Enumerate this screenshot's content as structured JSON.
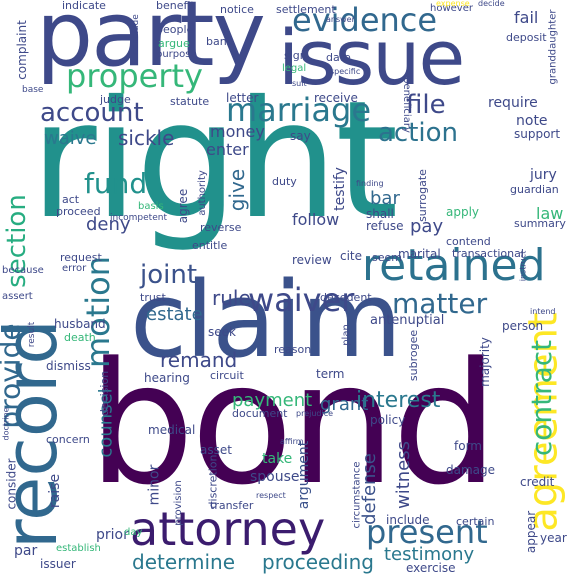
{
  "words": [
    {
      "text": "bond",
      "color": "#440154"
    },
    {
      "text": "right",
      "color": "#21918c"
    },
    {
      "text": "claim",
      "color": "#3b528b"
    },
    {
      "text": "party",
      "color": "#3e4989"
    },
    {
      "text": "issue",
      "color": "#3e4989"
    },
    {
      "text": "record",
      "color": "#31688e"
    },
    {
      "text": "retained",
      "color": "#2c728e"
    },
    {
      "text": "agreement",
      "color": "#fde725"
    },
    {
      "text": "attorney",
      "color": "#3b1c6e"
    },
    {
      "text": "evidence",
      "color": "#31688e"
    },
    {
      "text": "property",
      "color": "#35b779"
    },
    {
      "text": "marriage",
      "color": "#2a788e"
    },
    {
      "text": "account",
      "color": "#3e4989"
    },
    {
      "text": "waiver",
      "color": "#3e4989"
    },
    {
      "text": "motion",
      "color": "#2a788e"
    },
    {
      "text": "matter",
      "color": "#31688e"
    },
    {
      "text": "joint",
      "color": "#3b528b"
    },
    {
      "text": "present",
      "color": "#31688e"
    },
    {
      "text": "contract",
      "color": "#35b779"
    },
    {
      "text": "provide",
      "color": "#31688e"
    },
    {
      "text": "section",
      "color": "#27ad81"
    },
    {
      "text": "action",
      "color": "#2c728e"
    },
    {
      "text": "file",
      "color": "#3e4989"
    },
    {
      "text": "fund",
      "color": "#21918c"
    },
    {
      "text": "interest",
      "color": "#2a788e"
    },
    {
      "text": "determine",
      "color": "#2a788e"
    },
    {
      "text": "proceeding",
      "color": "#2a788e"
    },
    {
      "text": "testimony",
      "color": "#2a788e"
    },
    {
      "text": "witness",
      "color": "#3e4989"
    },
    {
      "text": "counsel",
      "color": "#2a788e"
    },
    {
      "text": "estate",
      "color": "#31688e"
    },
    {
      "text": "rule",
      "color": "#3e4989"
    },
    {
      "text": "remand",
      "color": "#3e4989"
    },
    {
      "text": "payment",
      "color": "#35b779"
    },
    {
      "text": "grant",
      "color": "#31688e"
    },
    {
      "text": "defense",
      "color": "#3b528b"
    },
    {
      "text": "argument",
      "color": "#3b528b"
    },
    {
      "text": "sickle",
      "color": "#3e4989"
    },
    {
      "text": "waive",
      "color": "#2a788e"
    },
    {
      "text": "money",
      "color": "#3e4989"
    },
    {
      "text": "enter",
      "color": "#3e4989"
    },
    {
      "text": "give",
      "color": "#31688e"
    },
    {
      "text": "deny",
      "color": "#3e4989"
    },
    {
      "text": "pay",
      "color": "#3e4989"
    },
    {
      "text": "bar",
      "color": "#31688e"
    },
    {
      "text": "law",
      "color": "#35b779"
    },
    {
      "text": "jury",
      "color": "#3e4989"
    },
    {
      "text": "note",
      "color": "#3e4989"
    },
    {
      "text": "support",
      "color": "#3e4989"
    },
    {
      "text": "require",
      "color": "#3e4989"
    },
    {
      "text": "receive",
      "color": "#3e4989"
    },
    {
      "text": "letter",
      "color": "#3e4989"
    },
    {
      "text": "statute",
      "color": "#3e4989"
    },
    {
      "text": "judge",
      "color": "#3e4989"
    },
    {
      "text": "fail",
      "color": "#3e4989"
    },
    {
      "text": "deposit",
      "color": "#3e4989"
    },
    {
      "text": "granddaughter",
      "color": "#3e4989"
    },
    {
      "text": "complaint",
      "color": "#3e4989"
    },
    {
      "text": "indicate",
      "color": "#3e4989"
    },
    {
      "text": "benefit",
      "color": "#3e4989"
    },
    {
      "text": "notice",
      "color": "#3e4989"
    },
    {
      "text": "settlement",
      "color": "#3e4989"
    },
    {
      "text": "however",
      "color": "#3e4989"
    },
    {
      "text": "decide",
      "color": "#3e4989"
    },
    {
      "text": "people",
      "color": "#3e4989"
    },
    {
      "text": "bank",
      "color": "#3e4989"
    },
    {
      "text": "argue",
      "color": "#35b779"
    },
    {
      "text": "purpose",
      "color": "#3e4989"
    },
    {
      "text": "sign",
      "color": "#3e4989"
    },
    {
      "text": "legal",
      "color": "#35b779"
    },
    {
      "text": "date",
      "color": "#3e4989"
    },
    {
      "text": "specific",
      "color": "#3e4989"
    },
    {
      "text": "beneficiary",
      "color": "#3e4989"
    },
    {
      "text": "consider",
      "color": "#3e4989"
    },
    {
      "text": "raise",
      "color": "#3e4989"
    },
    {
      "text": "prior",
      "color": "#3e4989"
    },
    {
      "text": "par",
      "color": "#3e4989"
    },
    {
      "text": "issuer",
      "color": "#3e4989"
    },
    {
      "text": "minor",
      "color": "#3e4989"
    },
    {
      "text": "take",
      "color": "#35b779"
    },
    {
      "text": "spouse",
      "color": "#3e4989"
    },
    {
      "text": "asset",
      "color": "#3e4989"
    },
    {
      "text": "medical",
      "color": "#3e4989"
    },
    {
      "text": "document",
      "color": "#3e4989"
    },
    {
      "text": "hearing",
      "color": "#3e4989"
    },
    {
      "text": "seek",
      "color": "#3e4989"
    },
    {
      "text": "circuit",
      "color": "#3e4989"
    },
    {
      "text": "reason",
      "color": "#3e4989"
    },
    {
      "text": "term",
      "color": "#3e4989"
    },
    {
      "text": "policy",
      "color": "#3e4989"
    },
    {
      "text": "antenuptial",
      "color": "#3e4989"
    },
    {
      "text": "decedent",
      "color": "#3e4989"
    },
    {
      "text": "person",
      "color": "#3e4989"
    },
    {
      "text": "marital",
      "color": "#3e4989"
    },
    {
      "text": "transactional",
      "color": "#3e4989"
    },
    {
      "text": "review",
      "color": "#3e4989"
    },
    {
      "text": "cite",
      "color": "#3e4989"
    },
    {
      "text": "seem",
      "color": "#3e4989"
    },
    {
      "text": "follow",
      "color": "#3e4989"
    },
    {
      "text": "shall",
      "color": "#3e4989"
    },
    {
      "text": "refuse",
      "color": "#3e4989"
    },
    {
      "text": "apply",
      "color": "#35b779"
    },
    {
      "text": "contend",
      "color": "#3e4989"
    },
    {
      "text": "summary",
      "color": "#3e4989"
    },
    {
      "text": "guardian",
      "color": "#3e4989"
    },
    {
      "text": "duty",
      "color": "#3e4989"
    },
    {
      "text": "testify",
      "color": "#3e4989"
    },
    {
      "text": "agree",
      "color": "#3e4989"
    },
    {
      "text": "proceed",
      "color": "#3e4989"
    },
    {
      "text": "reverse",
      "color": "#3e4989"
    },
    {
      "text": "entitle",
      "color": "#3e4989"
    },
    {
      "text": "request",
      "color": "#3e4989"
    },
    {
      "text": "error",
      "color": "#3e4989"
    },
    {
      "text": "because",
      "color": "#3e4989"
    },
    {
      "text": "assert",
      "color": "#3e4989"
    },
    {
      "text": "husband",
      "color": "#3e4989"
    },
    {
      "text": "death",
      "color": "#35b779"
    },
    {
      "text": "dismiss",
      "color": "#3e4989"
    },
    {
      "text": "decision",
      "color": "#3e4989"
    },
    {
      "text": "concern",
      "color": "#3e4989"
    },
    {
      "text": "damage",
      "color": "#3e4989"
    },
    {
      "text": "form",
      "color": "#3e4989"
    },
    {
      "text": "credit",
      "color": "#3e4989"
    },
    {
      "text": "include",
      "color": "#3e4989"
    },
    {
      "text": "certain",
      "color": "#3e4989"
    },
    {
      "text": "exercise",
      "color": "#3e4989"
    },
    {
      "text": "establish",
      "color": "#35b779"
    },
    {
      "text": "appear",
      "color": "#3e4989"
    },
    {
      "text": "year",
      "color": "#3e4989"
    },
    {
      "text": "trust",
      "color": "#3e4989"
    },
    {
      "text": "majority",
      "color": "#3e4989"
    },
    {
      "text": "circumstance",
      "color": "#3e4989"
    },
    {
      "text": "subrogee",
      "color": "#3e4989"
    },
    {
      "text": "surrogate",
      "color": "#3e4989"
    },
    {
      "text": "transfer",
      "color": "#3e4989"
    },
    {
      "text": "discretion",
      "color": "#3e4989"
    },
    {
      "text": "provision",
      "color": "#3e4989"
    },
    {
      "text": "incompetent",
      "color": "#3e4989"
    },
    {
      "text": "authority",
      "color": "#3e4989"
    },
    {
      "text": "basis",
      "color": "#35b779"
    },
    {
      "text": "act",
      "color": "#3e4989"
    },
    {
      "text": "conclude",
      "color": "#3e4989"
    },
    {
      "text": "base",
      "color": "#3e4989"
    },
    {
      "text": "suit",
      "color": "#3e4989"
    },
    {
      "text": "say",
      "color": "#3e4989"
    },
    {
      "text": "finding",
      "color": "#3e4989"
    },
    {
      "text": "expense",
      "color": "#fde725"
    },
    {
      "text": "answer",
      "color": "#3e4989"
    },
    {
      "text": "plan",
      "color": "#3e4989"
    },
    {
      "text": "doctrine",
      "color": "#3e4989"
    },
    {
      "text": "instruct",
      "color": "#3e4989"
    },
    {
      "text": "intend",
      "color": "#3e4989"
    },
    {
      "text": "result",
      "color": "#3e4989"
    },
    {
      "text": "prejudice",
      "color": "#3e4989"
    },
    {
      "text": "affirm",
      "color": "#3e4989"
    },
    {
      "text": "respect",
      "color": "#3e4989"
    },
    {
      "text": "day",
      "color": "#35b779"
    }
  ]
}
